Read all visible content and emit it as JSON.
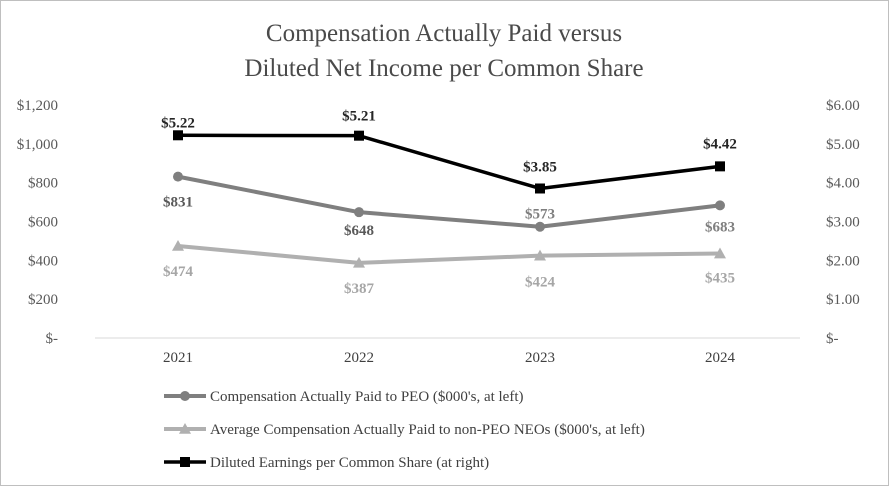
{
  "chart_data": {
    "type": "line",
    "title": [
      "Compensation Actually Paid versus",
      "Diluted Net Income per Common Share"
    ],
    "categories": [
      "2021",
      "2022",
      "2023",
      "2024"
    ],
    "left_axis": {
      "ylim": [
        0,
        1200
      ],
      "ticks": [
        0,
        200,
        400,
        600,
        800,
        1000,
        1200
      ],
      "tick_labels": [
        "$-",
        "$200",
        "$400",
        "$600",
        "$800",
        "$1,000",
        "$1,200"
      ]
    },
    "right_axis": {
      "ylim": [
        0,
        6
      ],
      "ticks": [
        0,
        1,
        2,
        3,
        4,
        5,
        6
      ],
      "tick_labels": [
        "$-",
        "$1.00",
        "$2.00",
        "$3.00",
        "$4.00",
        "$5.00",
        "$6.00"
      ]
    },
    "grid": false,
    "legend_position": "bottom",
    "series": [
      {
        "name": "Compensation Actually Paid to PEO ($000's, at left)",
        "axis": "left",
        "marker": "circle",
        "color": "#7f7f7f",
        "values": [
          831,
          648,
          573,
          683
        ],
        "labels": [
          "$831",
          "$648",
          "$573",
          "$683"
        ],
        "label_colors": [
          "#595959",
          "#595959",
          "#7f7f7f",
          "#7f7f7f"
        ]
      },
      {
        "name": "Average Compensation Actually Paid to non-PEO NEOs ($000's, at left)",
        "axis": "left",
        "marker": "triangle",
        "color": "#b0b0b0",
        "values": [
          474,
          387,
          424,
          435
        ],
        "labels": [
          "$474",
          "$387",
          "$424",
          "$435"
        ],
        "label_colors": [
          "#a6a6a6",
          "#a6a6a6",
          "#a6a6a6",
          "#a6a6a6"
        ]
      },
      {
        "name": "Diluted Earnings per Common Share (at right)",
        "axis": "right",
        "marker": "square",
        "color": "#000000",
        "values": [
          5.22,
          5.21,
          3.85,
          4.42
        ],
        "labels": [
          "$5.22",
          "$5.21",
          "$3.85",
          "$4.42"
        ],
        "label_colors": [
          "#262626",
          "#262626",
          "#262626",
          "#262626"
        ]
      }
    ]
  }
}
